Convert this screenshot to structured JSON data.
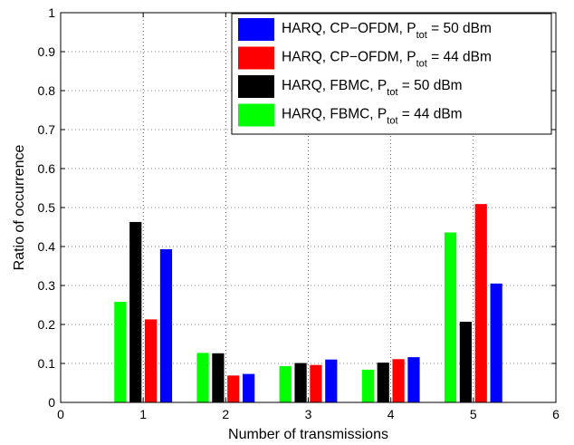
{
  "chart_data": {
    "type": "bar",
    "xlabel": "Number of transmissions",
    "ylabel": "Ratio of occurrence",
    "xlim": [
      0,
      6
    ],
    "ylim": [
      0,
      1
    ],
    "x_ticks": [
      "0",
      "1",
      "2",
      "3",
      "4",
      "5",
      "6"
    ],
    "y_ticks": [
      "0",
      "0.1",
      "0.2",
      "0.3",
      "0.4",
      "0.5",
      "0.6",
      "0.7",
      "0.8",
      "0.9",
      "1"
    ],
    "grid": true,
    "legend_position": "top-right",
    "categories": [
      1,
      2,
      3,
      4,
      5
    ],
    "series": [
      {
        "legend_main": "HARQ, FBMC, P",
        "legend_sub": "tot",
        "legend_tail": " = 44 dBm",
        "color": "#00ff00",
        "values": [
          0.258,
          0.127,
          0.093,
          0.084,
          0.436
        ]
      },
      {
        "legend_main": "HARQ, FBMC, P",
        "legend_sub": "tot",
        "legend_tail": " = 50 dBm",
        "color": "#000000",
        "values": [
          0.463,
          0.126,
          0.101,
          0.102,
          0.207
        ]
      },
      {
        "legend_main": "HARQ, CP−OFDM, P",
        "legend_sub": "tot",
        "legend_tail": " = 44 dBm",
        "color": "#ff0000",
        "values": [
          0.213,
          0.069,
          0.096,
          0.111,
          0.509
        ]
      },
      {
        "legend_main": "HARQ, CP−OFDM, P",
        "legend_sub": "tot",
        "legend_tail": " = 50 dBm",
        "color": "#0000ff",
        "values": [
          0.393,
          0.073,
          0.11,
          0.116,
          0.305
        ]
      }
    ],
    "legend_order": [
      3,
      2,
      1,
      0
    ]
  }
}
